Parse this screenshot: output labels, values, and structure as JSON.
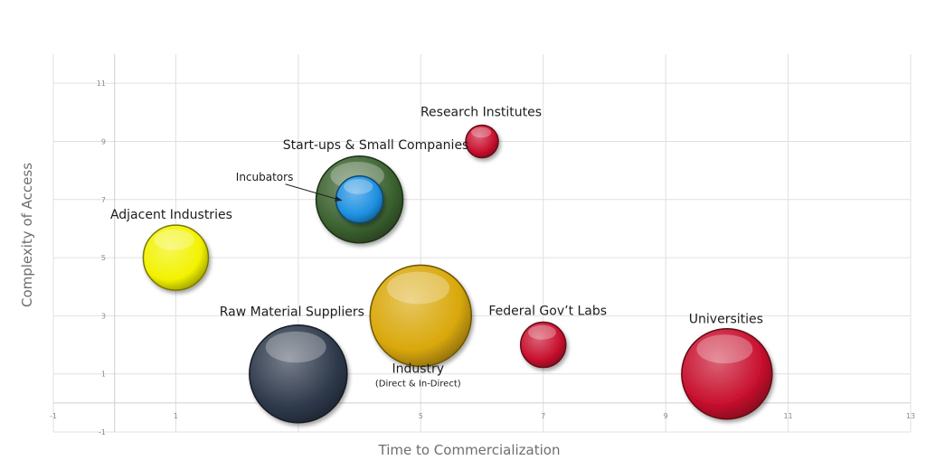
{
  "chart_data": {
    "type": "bubble",
    "title": "",
    "xlabel": "Time to Commercialization",
    "ylabel": "Complexity of Access",
    "xlim": [
      -1,
      13
    ],
    "ylim": [
      -1,
      12
    ],
    "x_ticks": [
      -1,
      1,
      3,
      5,
      7,
      9,
      11,
      13
    ],
    "y_ticks": [
      -1,
      1,
      3,
      5,
      7,
      9,
      11
    ],
    "grid": true,
    "legend": "none",
    "points": [
      {
        "label": "Adjacent Industries",
        "sublabel": "",
        "x": 1,
        "y": 5,
        "size": 36,
        "color": "#f2f200"
      },
      {
        "label": "Start-ups & Small Companies",
        "sublabel": "",
        "x": 4,
        "y": 7,
        "size": 48,
        "color": "#3c6230"
      },
      {
        "label": "Incubators",
        "sublabel": "",
        "x": 4,
        "y": 7,
        "size": 26,
        "color": "#1e90e0"
      },
      {
        "label": "Research Institutes",
        "sublabel": "",
        "x": 6,
        "y": 9,
        "size": 18,
        "color": "#c8102e"
      },
      {
        "label": "Raw Material Suppliers",
        "sublabel": "",
        "x": 3,
        "y": 1,
        "size": 54,
        "color": "#2f3a4c"
      },
      {
        "label": "Industry",
        "sublabel": "(Direct & In-Direct)",
        "x": 5,
        "y": 3,
        "size": 56,
        "color": "#d9a80a"
      },
      {
        "label": "Federal Gov’t Labs",
        "sublabel": "",
        "x": 7,
        "y": 2,
        "size": 25,
        "color": "#c8102e"
      },
      {
        "label": "Universities",
        "sublabel": "",
        "x": 10,
        "y": 1,
        "size": 50,
        "color": "#c8102e"
      }
    ]
  }
}
